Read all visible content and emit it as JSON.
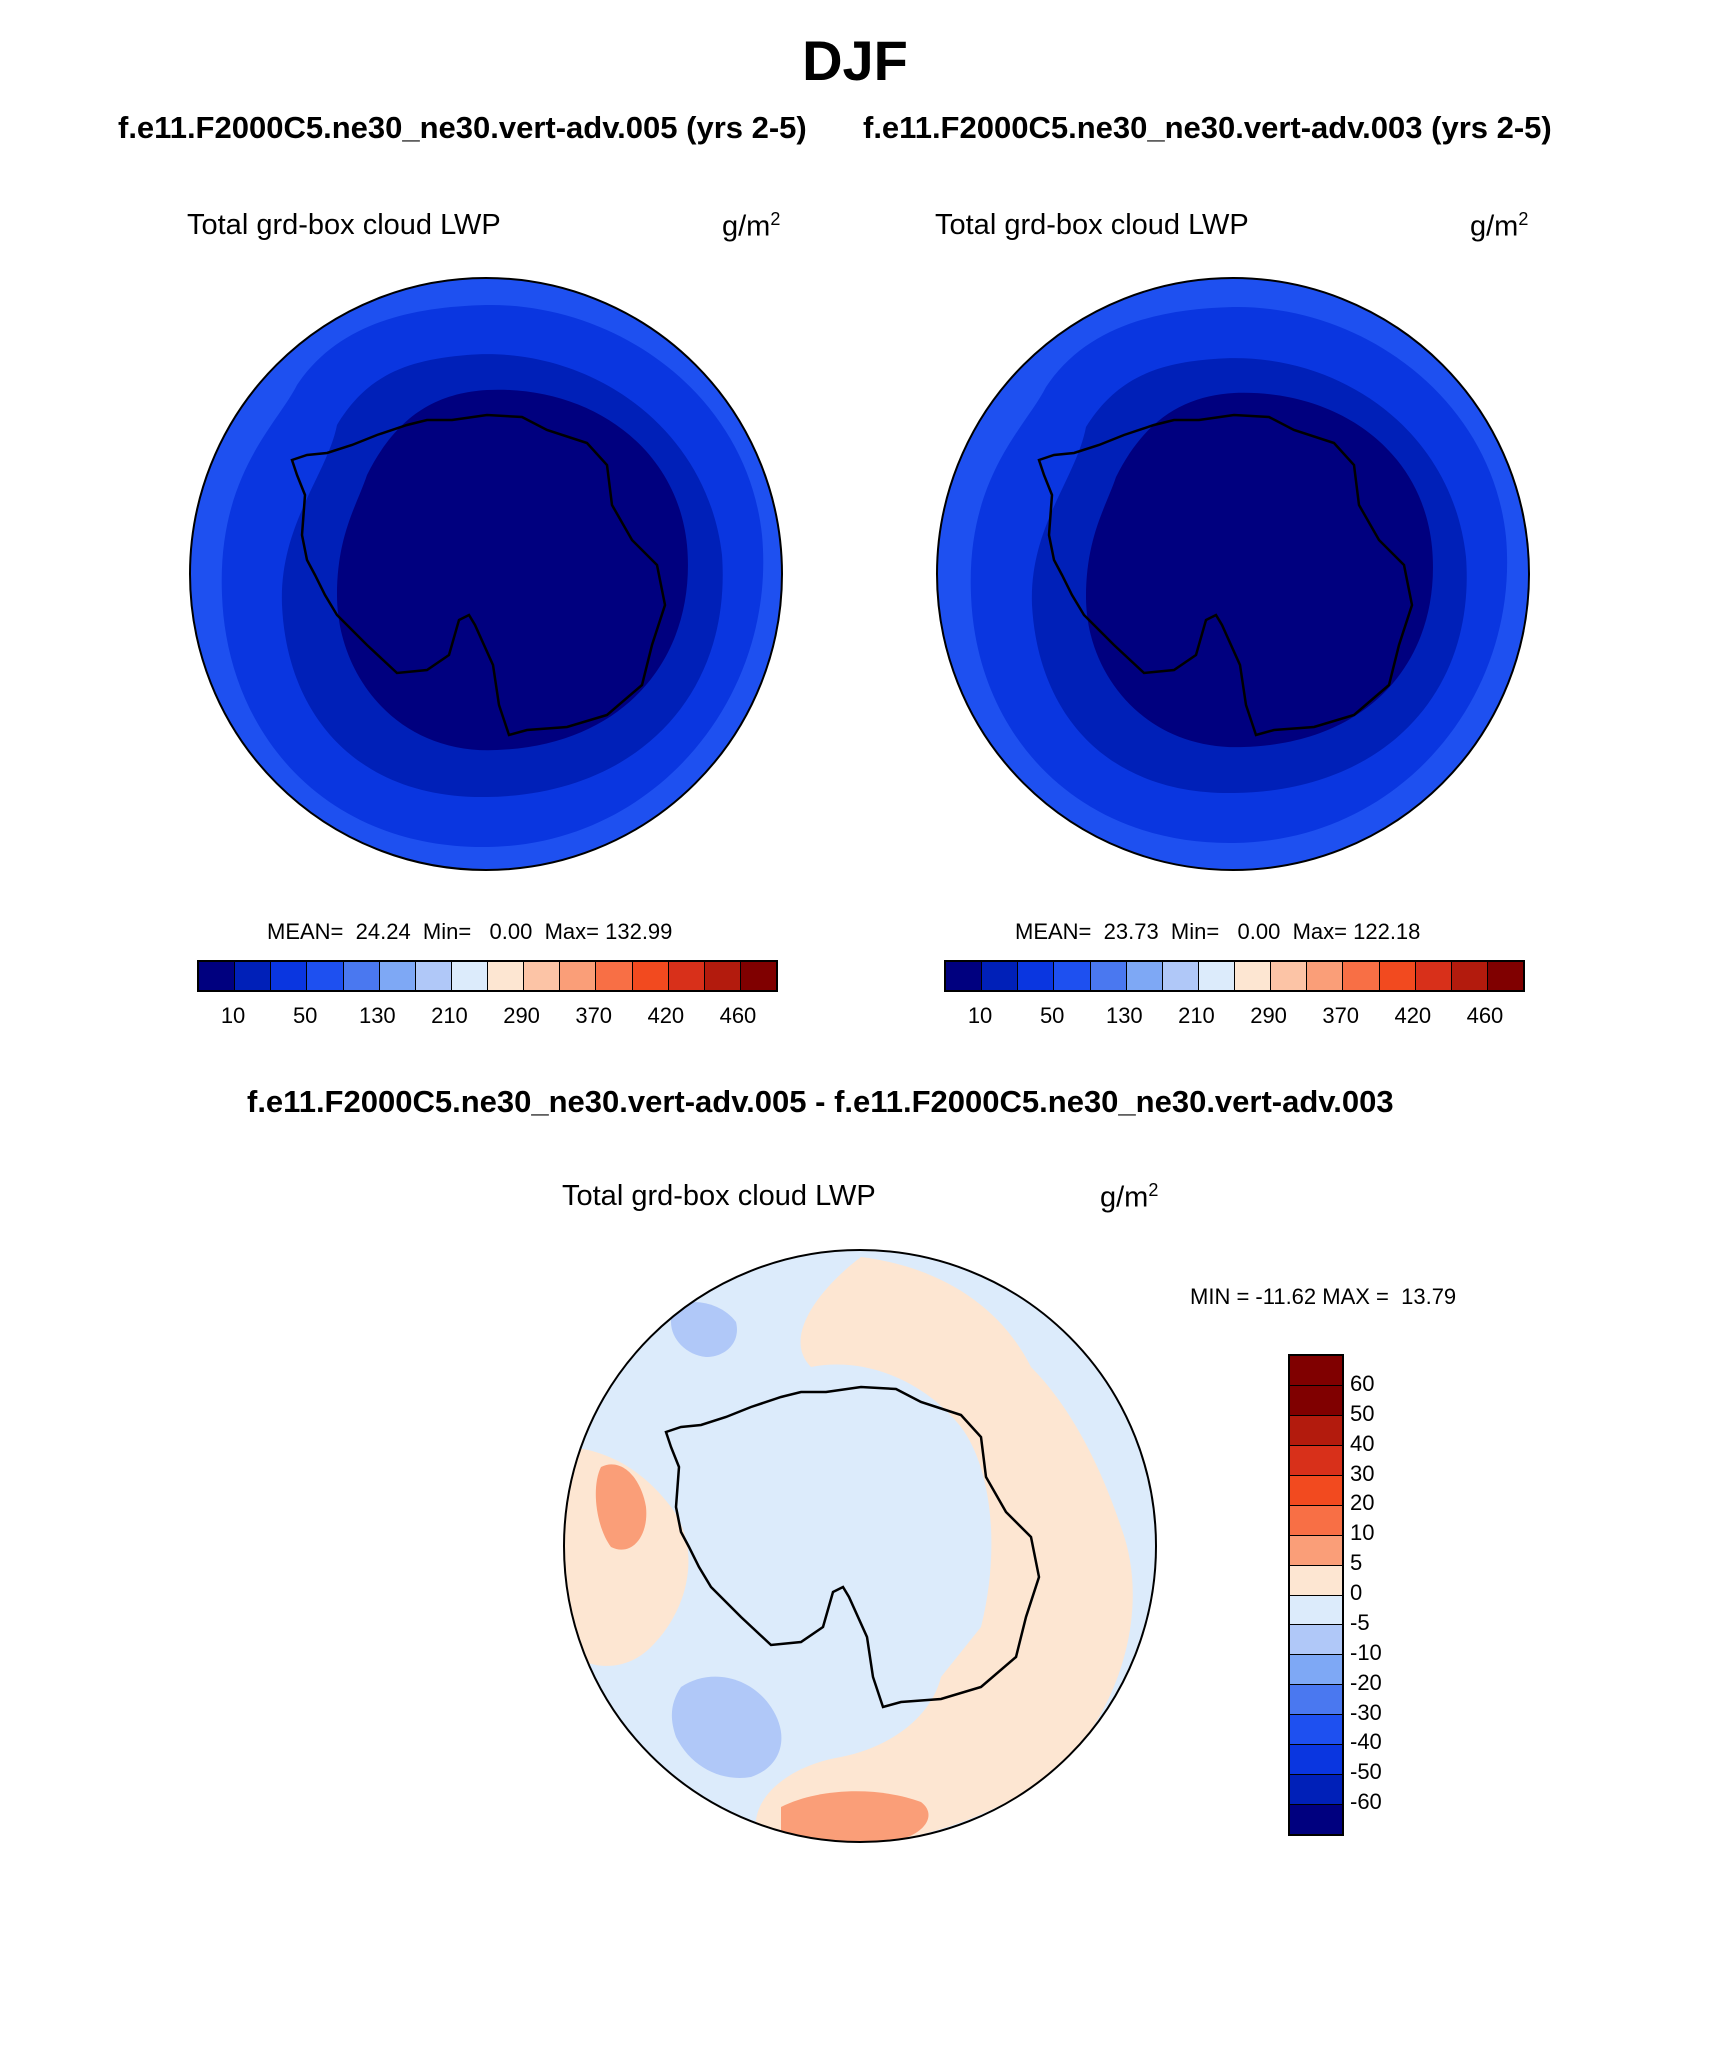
{
  "title": "DJF",
  "case_a": "f.e11.F2000C5.ne30_ne30.vert-adv.005 (yrs 2-5)",
  "case_b": "f.e11.F2000C5.ne30_ne30.vert-adv.003 (yrs 2-5)",
  "diff_title": "f.e11.F2000C5.ne30_ne30.vert-adv.005 - f.e11.F2000C5.ne30_ne30.vert-adv.003",
  "panels": {
    "left": {
      "variable": "Total grd-box cloud LWP",
      "units_base": "g/m",
      "units_exp": "2",
      "stats": "MEAN=  24.24  Min=   0.00  Max= 132.99"
    },
    "right": {
      "variable": "Total grd-box cloud LWP",
      "units_base": "g/m",
      "units_exp": "2",
      "stats": "MEAN=  23.73  Min=   0.00  Max= 122.18"
    },
    "diff": {
      "variable": "Total grd-box cloud LWP",
      "units_base": "g/m",
      "units_exp": "2",
      "stats": "MIN = -11.62 MAX =  13.79"
    }
  },
  "colorbar_main": {
    "colors": [
      "#00007f",
      "#0020b8",
      "#0a36e0",
      "#1e50f0",
      "#4a78f0",
      "#7ea8f5",
      "#b0c8f8",
      "#dcebfb",
      "#fde6d2",
      "#fcc4a6",
      "#fa9e78",
      "#f86f45",
      "#f24a1f",
      "#d8301a",
      "#b31b0d",
      "#800000"
    ],
    "labels": [
      "10",
      "50",
      "130",
      "210",
      "290",
      "370",
      "420",
      "460"
    ]
  },
  "colorbar_diff": {
    "colors": [
      "#800000",
      "#b31b0d",
      "#d8301a",
      "#f24a1f",
      "#f86f45",
      "#fa9e78",
      "#fde6d2",
      "#dcebfb",
      "#b0c8f8",
      "#7ea8f5",
      "#4a78f0",
      "#1e50f0",
      "#0a36e0",
      "#0020b8",
      "#00007f"
    ],
    "labels": [
      "60",
      "50",
      "40",
      "30",
      "20",
      "10",
      "5",
      "0",
      "-5",
      "-10",
      "-20",
      "-30",
      "-40",
      "-50",
      "-60"
    ]
  },
  "map_colors": {
    "outer": "#1e50f0",
    "mid": "#0a36e0",
    "inner": "#0020b8",
    "core": "#00007f",
    "diff_base": "#dcebfb",
    "diff_pos": "#fde6d2",
    "diff_pos2": "#fa9e78",
    "diff_neg": "#b0c8f8"
  }
}
